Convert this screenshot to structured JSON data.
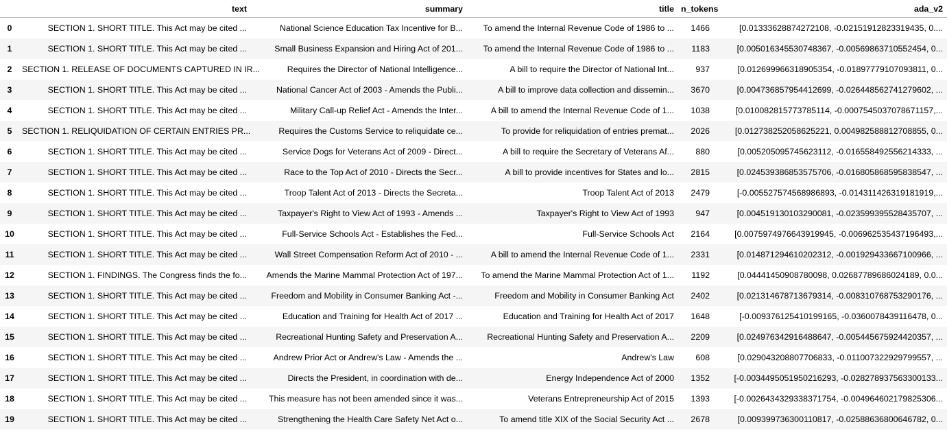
{
  "columns": [
    "",
    "text",
    "summary",
    "title",
    "n_tokens",
    "ada_v2"
  ],
  "rows": [
    {
      "index": "0",
      "text": "SECTION 1. SHORT TITLE. This Act may be cited ...",
      "summary": "National Science Education Tax Incentive for B...",
      "title": "To amend the Internal Revenue Code of 1986 to ...",
      "n_tokens": "1466",
      "ada_v2": "[0.01333628874272108, -0.02151912823319435, 0...."
    },
    {
      "index": "1",
      "text": "SECTION 1. SHORT TITLE. This Act may be cited ...",
      "summary": "Small Business Expansion and Hiring Act of 201...",
      "title": "To amend the Internal Revenue Code of 1986 to ...",
      "n_tokens": "1183",
      "ada_v2": "[0.005016345530748367, -0.00569863710552454, 0..."
    },
    {
      "index": "2",
      "text": "SECTION 1. RELEASE OF DOCUMENTS CAPTURED IN IR...",
      "summary": "Requires the Director of National Intelligence...",
      "title": "A bill to require the Director of National Int...",
      "n_tokens": "937",
      "ada_v2": "[0.012699966318905354, -0.01897779107093811, 0..."
    },
    {
      "index": "3",
      "text": "SECTION 1. SHORT TITLE. This Act may be cited ...",
      "summary": "National Cancer Act of 2003 - Amends the Publi...",
      "title": "A bill to improve data collection and dissemin...",
      "n_tokens": "3670",
      "ada_v2": "[0.004736857954412699, -0.026448562741279602, ..."
    },
    {
      "index": "4",
      "text": "SECTION 1. SHORT TITLE. This Act may be cited ...",
      "summary": "Military Call-up Relief Act - Amends the Inter...",
      "title": "A bill to amend the Internal Revenue Code of 1...",
      "n_tokens": "1038",
      "ada_v2": "[0.010082815773785114, -0.0007545037078671157,..."
    },
    {
      "index": "5",
      "text": "SECTION 1. RELIQUIDATION OF CERTAIN ENTRIES PR...",
      "summary": "Requires the Customs Service to reliquidate ce...",
      "title": "To provide for reliquidation of entries premat...",
      "n_tokens": "2026",
      "ada_v2": "[0.012738252058625221, 0.004982588812708855, 0..."
    },
    {
      "index": "6",
      "text": "SECTION 1. SHORT TITLE. This Act may be cited ...",
      "summary": "Service Dogs for Veterans Act of 2009 - Direct...",
      "title": "A bill to require the Secretary of Veterans Af...",
      "n_tokens": "880",
      "ada_v2": "[0.005205095745623112, -0.016558492556214333, ..."
    },
    {
      "index": "7",
      "text": "SECTION 1. SHORT TITLE. This Act may be cited ...",
      "summary": "Race to the Top Act of 2010 - Directs the Secr...",
      "title": "A bill to provide incentives for States and lo...",
      "n_tokens": "2815",
      "ada_v2": "[0.024539386853575706, -0.016805868595838547, ..."
    },
    {
      "index": "8",
      "text": "SECTION 1. SHORT TITLE. This Act may be cited ...",
      "summary": "Troop Talent Act of 2013 - Directs the Secreta...",
      "title": "Troop Talent Act of 2013",
      "n_tokens": "2479",
      "ada_v2": "[-0.005527574568986893, -0.014311426319181919,..."
    },
    {
      "index": "9",
      "text": "SECTION 1. SHORT TITLE. This Act may be cited ...",
      "summary": "Taxpayer's Right to View Act of 1993 - Amends ...",
      "title": "Taxpayer's Right to View Act of 1993",
      "n_tokens": "947",
      "ada_v2": "[0.004519130103290081, -0.023599395528435707, ..."
    },
    {
      "index": "10",
      "text": "SECTION 1. SHORT TITLE. This Act may be cited ...",
      "summary": "Full-Service Schools Act - Establishes the Fed...",
      "title": "Full-Service Schools Act",
      "n_tokens": "2164",
      "ada_v2": "[0.0075974976643919945, -0.006962535437196493,..."
    },
    {
      "index": "11",
      "text": "SECTION 1. SHORT TITLE. This Act may be cited ...",
      "summary": "Wall Street Compensation Reform Act of 2010 - ...",
      "title": "A bill to amend the Internal Revenue Code of 1...",
      "n_tokens": "2331",
      "ada_v2": "[0.014871294610202312, -0.001929433667100966, ..."
    },
    {
      "index": "12",
      "text": "SECTION 1. FINDINGS. The Congress finds the fo...",
      "summary": "Amends the Marine Mammal Protection Act of 197...",
      "title": "To amend the Marine Mammal Protection Act of 1...",
      "n_tokens": "1192",
      "ada_v2": "[0.04441450908780098, 0.02687789686024189, 0.0..."
    },
    {
      "index": "13",
      "text": "SECTION 1. SHORT TITLE. This Act may be cited ...",
      "summary": "Freedom and Mobility in Consumer Banking Act -...",
      "title": "Freedom and Mobility in Consumer Banking Act",
      "n_tokens": "2402",
      "ada_v2": "[0.021314678713679314, -0.008310768753290176, ..."
    },
    {
      "index": "14",
      "text": "SECTION 1. SHORT TITLE. This Act may be cited ...",
      "summary": "Education and Training for Health Act of 2017 ...",
      "title": "Education and Training for Health Act of 2017",
      "n_tokens": "1648",
      "ada_v2": "[-0.009376125410199165, -0.0360078439116478, 0..."
    },
    {
      "index": "15",
      "text": "SECTION 1. SHORT TITLE. This Act may be cited ...",
      "summary": "Recreational Hunting Safety and Preservation A...",
      "title": "Recreational Hunting Safety and Preservation A...",
      "n_tokens": "2209",
      "ada_v2": "[0.024976342916488647, -0.005445675924420357, ..."
    },
    {
      "index": "16",
      "text": "SECTION 1. SHORT TITLE. This Act may be cited ...",
      "summary": "Andrew Prior Act or Andrew's Law - Amends the ...",
      "title": "Andrew's Law",
      "n_tokens": "608",
      "ada_v2": "[0.029043208807706833, -0.011007322929799557, ..."
    },
    {
      "index": "17",
      "text": "SECTION 1. SHORT TITLE. This Act may be cited ...",
      "summary": "Directs the President, in coordination with de...",
      "title": "Energy Independence Act of 2000",
      "n_tokens": "1352",
      "ada_v2": "[-0.0034495051950216293, -0.028278937563300133..."
    },
    {
      "index": "18",
      "text": "SECTION 1. SHORT TITLE. This Act may be cited ...",
      "summary": "This measure has not been amended since it was...",
      "title": "Veterans Entrepreneurship Act of 2015",
      "n_tokens": "1393",
      "ada_v2": "[-0.0026434329338371754, -0.004964602179825306..."
    },
    {
      "index": "19",
      "text": "SECTION 1. SHORT TITLE. This Act may be cited ...",
      "summary": "Strengthening the Health Care Safety Net Act o...",
      "title": "To amend title XIX of the Social Security Act ...",
      "n_tokens": "2678",
      "ada_v2": "[0.009399736300110817, -0.02588636800646782, 0..."
    }
  ]
}
